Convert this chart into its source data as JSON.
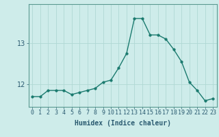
{
  "x": [
    0,
    1,
    2,
    3,
    4,
    5,
    6,
    7,
    8,
    9,
    10,
    11,
    12,
    13,
    14,
    15,
    16,
    17,
    18,
    19,
    20,
    21,
    22,
    23
  ],
  "y": [
    11.7,
    11.7,
    11.85,
    11.85,
    11.85,
    11.75,
    11.8,
    11.85,
    11.9,
    12.05,
    12.1,
    12.4,
    12.75,
    13.6,
    13.6,
    13.2,
    13.2,
    13.1,
    12.85,
    12.55,
    12.05,
    11.85,
    11.6,
    11.65
  ],
  "line_color": "#1a7a6e",
  "marker": "o",
  "markersize": 2.5,
  "linewidth": 1.0,
  "bg_color": "#ceecea",
  "grid_color": "#afd8d4",
  "xlabel": "Humidex (Indice chaleur)",
  "xlim": [
    -0.5,
    23.5
  ],
  "ylim": [
    11.45,
    13.95
  ],
  "yticks": [
    12,
    13
  ],
  "xtick_labels": [
    "0",
    "1",
    "2",
    "3",
    "4",
    "5",
    "6",
    "7",
    "8",
    "9",
    "10",
    "11",
    "12",
    "13",
    "14",
    "15",
    "16",
    "17",
    "18",
    "19",
    "20",
    "21",
    "22",
    "23"
  ],
  "xlabel_fontsize": 7,
  "tick_fontsize": 6,
  "tick_color": "#2a5a70",
  "line_dark": "#1a5a55"
}
